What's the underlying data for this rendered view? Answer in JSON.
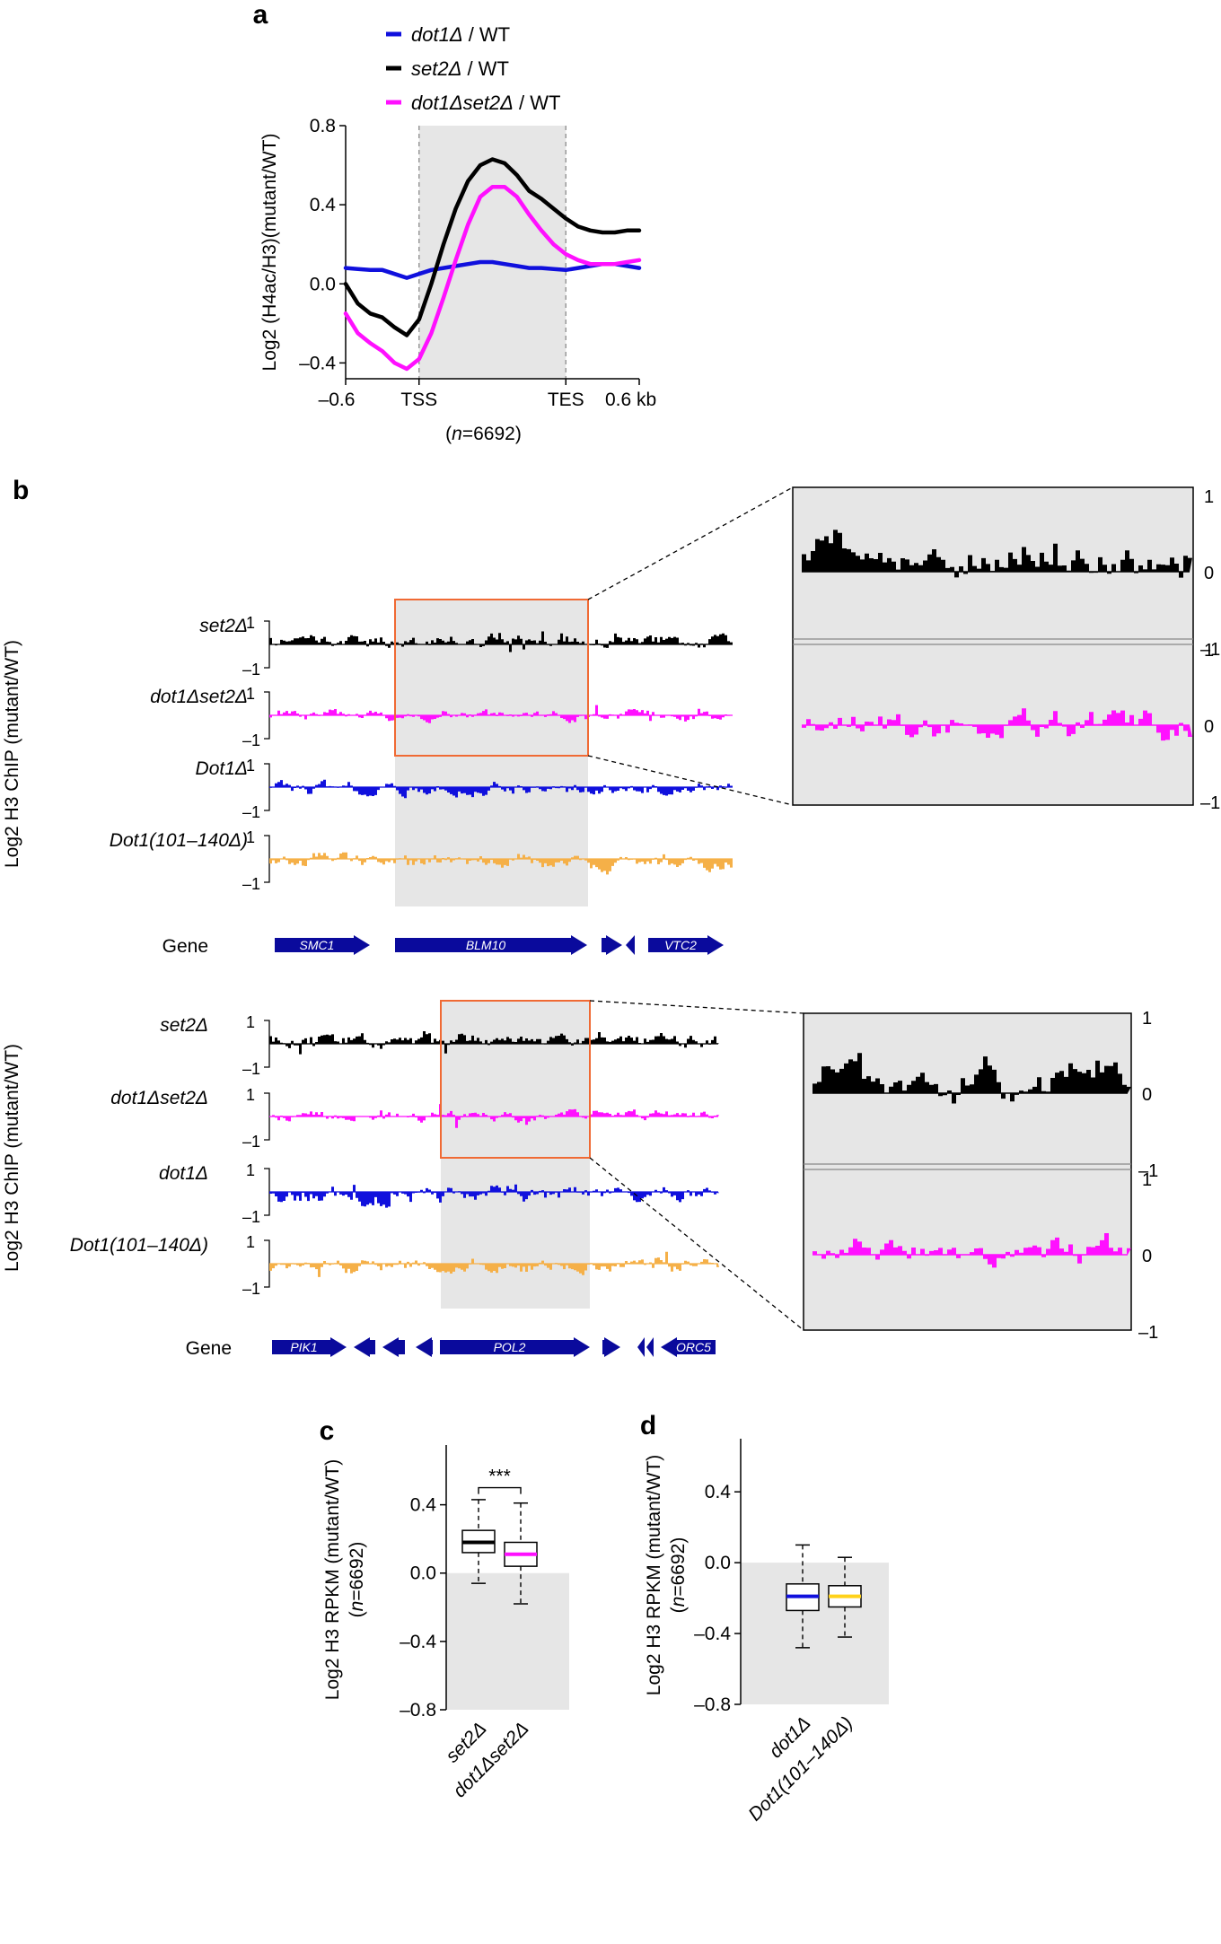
{
  "colors": {
    "black": "#000000",
    "blue": "#1010dd",
    "magenta": "#ff10ff",
    "orange": "#f5b048",
    "gray_shade": "#e6e6e6",
    "box_red": "#f06a34",
    "gene_blue": "#0a0a9c",
    "yellow": "#ffd21a"
  },
  "panel_labels": {
    "a": "a",
    "b": "b",
    "c": "c",
    "d": "d"
  },
  "chart_data": [
    {
      "id": "a",
      "type": "line",
      "ylabel": "Log2 (H4ac/H3)(mutant/WT)",
      "xlabel_n": "n",
      "xlabel_rest": "=6692",
      "ylim": [
        -0.48,
        0.8
      ],
      "yticks": [
        0.8,
        0.4,
        0.0,
        -0.4
      ],
      "ytick_labels": [
        "0.8",
        "0.4",
        "0.0",
        "–0.4"
      ],
      "x": [
        -0.6,
        -0.55,
        -0.5,
        -0.45,
        -0.4,
        -0.35,
        -0.3,
        -0.25,
        -0.2,
        -0.15,
        -0.1,
        -0.05,
        0.0,
        0.05,
        0.1,
        0.15,
        0.2,
        0.25,
        0.3,
        0.35,
        0.4,
        0.45,
        0.5,
        0.55,
        0.6
      ],
      "xlim": [
        -0.6,
        0.6
      ],
      "shade_range": [
        -0.3,
        0.3
      ],
      "vlines": [
        -0.3,
        0.3
      ],
      "xticks": [
        -0.6,
        -0.3,
        0.3,
        0.6
      ],
      "xtick_labels": [
        "–0.6",
        "TSS",
        "TES",
        "0.6 kb"
      ],
      "series": [
        {
          "name_it": "dot1Δ",
          "name_rest": " / WT",
          "color_key": "blue",
          "values": [
            0.08,
            0.075,
            0.07,
            0.07,
            0.05,
            0.03,
            0.05,
            0.07,
            0.08,
            0.09,
            0.1,
            0.11,
            0.11,
            0.1,
            0.09,
            0.08,
            0.08,
            0.075,
            0.07,
            0.08,
            0.09,
            0.1,
            0.1,
            0.09,
            0.08
          ]
        },
        {
          "name_it": "set2Δ",
          "name_rest": " / WT",
          "color_key": "black",
          "values": [
            0.0,
            -0.1,
            -0.15,
            -0.17,
            -0.22,
            -0.26,
            -0.18,
            0.0,
            0.2,
            0.38,
            0.52,
            0.6,
            0.63,
            0.61,
            0.55,
            0.47,
            0.43,
            0.38,
            0.33,
            0.29,
            0.27,
            0.26,
            0.26,
            0.27,
            0.27
          ]
        },
        {
          "name_it": "dot1Δset2Δ",
          "name_rest": " / WT",
          "color_key": "magenta",
          "values": [
            -0.15,
            -0.25,
            -0.3,
            -0.34,
            -0.4,
            -0.43,
            -0.38,
            -0.25,
            -0.07,
            0.12,
            0.3,
            0.44,
            0.49,
            0.49,
            0.44,
            0.35,
            0.27,
            0.2,
            0.15,
            0.12,
            0.1,
            0.1,
            0.1,
            0.11,
            0.12
          ]
        }
      ]
    },
    {
      "id": "b1",
      "type": "track",
      "ylabel": "Log2 H3 ChIP (mutant/WT)",
      "y_top_label": "1",
      "y_bottom_label": "–1",
      "zero_label": "0",
      "tracks": [
        {
          "parts": [
            "set2Δ"
          ],
          "color_key": "black",
          "seed": 11,
          "bias": 0.18,
          "amp": 0.22
        },
        {
          "parts": [
            "dot1Δset2Δ"
          ],
          "color_key": "magenta",
          "seed": 23,
          "bias": 0.02,
          "amp": 0.2
        },
        {
          "parts": [
            "Dot1Δ"
          ],
          "color_key": "blue",
          "seed": 37,
          "bias": -0.1,
          "amp": 0.25
        },
        {
          "parts": [
            "Dot1(101–140Δ)"
          ],
          "color_key": "orange",
          "seed": 51,
          "bias": -0.12,
          "amp": 0.25
        }
      ],
      "gene_label": "Gene",
      "genes": [
        {
          "name": "SMC1",
          "dir": "+"
        },
        {
          "name": "BLM10",
          "dir": "+"
        },
        {
          "name": "",
          "dir": "+"
        },
        {
          "name": "",
          "dir": "-"
        },
        {
          "name": "VTC2",
          "dir": "+"
        }
      ]
    },
    {
      "id": "b2",
      "type": "track",
      "ylabel": "Log2 H3 ChIP (mutant/WT)",
      "y_top_label": "1",
      "y_bottom_label": "–1",
      "zero_label": "0",
      "tracks": [
        {
          "parts": [
            "set2Δ"
          ],
          "color_key": "black",
          "seed": 67,
          "bias": 0.18,
          "amp": 0.22
        },
        {
          "parts": [
            "dot1Δset2Δ"
          ],
          "color_key": "magenta",
          "seed": 79,
          "bias": 0.02,
          "amp": 0.2
        },
        {
          "parts": [
            "dot1Δ"
          ],
          "color_key": "blue",
          "seed": 83,
          "bias": -0.15,
          "amp": 0.3
        },
        {
          "parts": [
            "Dot1(101–140Δ)"
          ],
          "color_key": "orange",
          "seed": 97,
          "bias": -0.12,
          "amp": 0.25
        }
      ],
      "gene_label": "Gene",
      "genes": [
        {
          "name": "PIK1",
          "dir": "+"
        },
        {
          "name": "",
          "dir": "-"
        },
        {
          "name": "",
          "dir": "-"
        },
        {
          "name": "",
          "dir": "-"
        },
        {
          "name": "POL2",
          "dir": "+"
        },
        {
          "name": "",
          "dir": "+"
        },
        {
          "name": "",
          "dir": "-"
        },
        {
          "name": "",
          "dir": "-"
        },
        {
          "name": "ORC5",
          "dir": "-"
        }
      ]
    },
    {
      "id": "c",
      "type": "box",
      "ylabel": "Log2 H3 RPKM (mutant/WT)",
      "ylabel2_n": "n",
      "ylabel2_rest": "=6692)",
      "ylabel2_open": "(",
      "ylim": [
        -0.8,
        0.75
      ],
      "yticks": [
        0.4,
        0.0,
        -0.4,
        -0.8
      ],
      "ytick_labels": [
        "0.4",
        "0.0",
        "–0.4",
        "–0.8"
      ],
      "significance": "***",
      "boxes": [
        {
          "label": "set2Δ",
          "whisker_low": -0.06,
          "q1": 0.12,
          "median": 0.18,
          "q3": 0.25,
          "whisker_high": 0.43,
          "color_key": "black"
        },
        {
          "label": "dot1Δset2Δ",
          "whisker_low": -0.18,
          "q1": 0.04,
          "median": 0.11,
          "q3": 0.18,
          "whisker_high": 0.41,
          "color_key": "magenta"
        }
      ]
    },
    {
      "id": "d",
      "type": "box",
      "ylabel": "Log2 H3 RPKM (mutant/WT)",
      "ylabel2_n": "n",
      "ylabel2_rest": "=6692)",
      "ylabel2_open": "(",
      "ylim": [
        -0.8,
        0.7
      ],
      "yticks": [
        0.4,
        0.0,
        -0.4,
        -0.8
      ],
      "ytick_labels": [
        "0.4",
        "0.0",
        "–0.4",
        "–0.8"
      ],
      "boxes": [
        {
          "label": "dot1Δ",
          "whisker_low": -0.48,
          "q1": -0.27,
          "median": -0.19,
          "q3": -0.12,
          "whisker_high": 0.1,
          "color_key": "blue"
        },
        {
          "label": "Dot1(101–140Δ)",
          "whisker_low": -0.42,
          "q1": -0.25,
          "median": -0.19,
          "q3": -0.13,
          "whisker_high": 0.03,
          "color_key": "yellow"
        }
      ]
    }
  ]
}
